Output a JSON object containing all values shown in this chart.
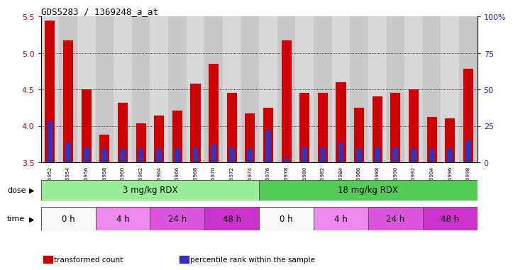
{
  "title": "GDS5283 / 1369248_a_at",
  "samples": [
    "GSM306952",
    "GSM306954",
    "GSM306956",
    "GSM306958",
    "GSM306960",
    "GSM306962",
    "GSM306964",
    "GSM306966",
    "GSM306968",
    "GSM306970",
    "GSM306972",
    "GSM306974",
    "GSM306976",
    "GSM306978",
    "GSM306980",
    "GSM306982",
    "GSM306984",
    "GSM306986",
    "GSM306988",
    "GSM306990",
    "GSM306992",
    "GSM306994",
    "GSM306996",
    "GSM306998"
  ],
  "transformed_count": [
    5.45,
    5.17,
    4.5,
    3.88,
    4.32,
    4.03,
    4.14,
    4.21,
    4.58,
    4.85,
    4.45,
    4.17,
    4.25,
    5.17,
    4.45,
    4.45,
    4.6,
    4.25,
    4.4,
    4.45,
    4.5,
    4.12,
    4.1,
    4.78
  ],
  "percentile_rank": [
    28,
    13,
    10,
    9,
    9,
    9,
    9,
    9,
    10,
    12,
    10,
    9,
    22,
    3,
    10,
    10,
    13,
    9,
    10,
    10,
    9,
    9,
    9,
    15
  ],
  "bar_color": "#cc0000",
  "blue_color": "#3333bb",
  "ymin": 3.5,
  "ymax": 5.5,
  "yticks_left": [
    3.5,
    4.0,
    4.5,
    5.0,
    5.5
  ],
  "yticks_right": [
    0,
    25,
    50,
    75,
    100
  ],
  "ytick_right_labels": [
    "0",
    "25",
    "50",
    "75",
    "100%"
  ],
  "col_colors": [
    "#d8d8d8",
    "#c8c8c8"
  ],
  "dose_groups": [
    {
      "label": "3 mg/kg RDX",
      "start": 0,
      "end": 12,
      "color": "#99ee99"
    },
    {
      "label": "18 mg/kg RDX",
      "start": 12,
      "end": 24,
      "color": "#55cc55"
    }
  ],
  "time_groups": [
    {
      "label": "0 h",
      "start": 0,
      "end": 3,
      "color": "#f8f8f8"
    },
    {
      "label": "4 h",
      "start": 3,
      "end": 6,
      "color": "#ee88ee"
    },
    {
      "label": "24 h",
      "start": 6,
      "end": 9,
      "color": "#dd55dd"
    },
    {
      "label": "48 h",
      "start": 9,
      "end": 12,
      "color": "#cc33cc"
    },
    {
      "label": "0 h",
      "start": 12,
      "end": 15,
      "color": "#f8f8f8"
    },
    {
      "label": "4 h",
      "start": 15,
      "end": 18,
      "color": "#ee88ee"
    },
    {
      "label": "24 h",
      "start": 18,
      "end": 21,
      "color": "#dd55dd"
    },
    {
      "label": "48 h",
      "start": 21,
      "end": 24,
      "color": "#cc33cc"
    }
  ],
  "legend_items": [
    {
      "label": "transformed count",
      "color": "#cc0000"
    },
    {
      "label": "percentile rank within the sample",
      "color": "#3333bb"
    }
  ]
}
